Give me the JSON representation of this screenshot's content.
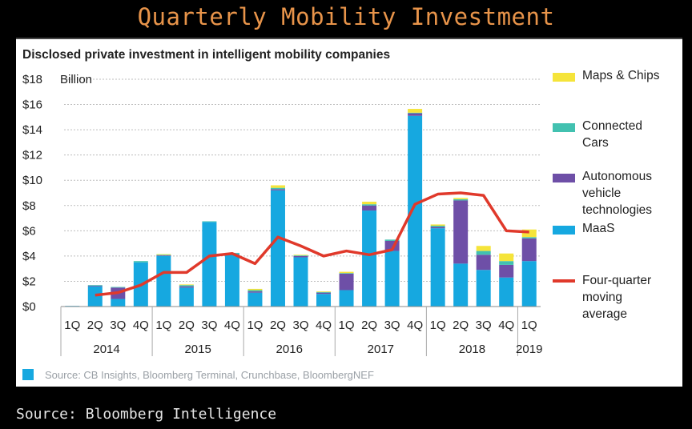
{
  "header": {
    "title": "Quarterly Mobility Investment"
  },
  "footer": {
    "source": "Source: Bloomberg Intelligence"
  },
  "chart_data": {
    "type": "bar",
    "stacked": true,
    "title": "Disclosed private investment in intelligent mobility companies",
    "unit_label": "Billion",
    "ylim": [
      0,
      18
    ],
    "y_ticks": [
      "$0",
      "$2",
      "$4",
      "$6",
      "$8",
      "$10",
      "$12",
      "$14",
      "$16",
      "$18"
    ],
    "grid": true,
    "legend_position": "right",
    "categories": [
      "1Q",
      "2Q",
      "3Q",
      "4Q",
      "1Q",
      "2Q",
      "3Q",
      "4Q",
      "1Q",
      "2Q",
      "3Q",
      "4Q",
      "1Q",
      "2Q",
      "3Q",
      "4Q",
      "1Q",
      "2Q",
      "3Q",
      "4Q",
      "1Q"
    ],
    "years": [
      {
        "label": "2014",
        "count": 4
      },
      {
        "label": "2015",
        "count": 4
      },
      {
        "label": "2016",
        "count": 4
      },
      {
        "label": "2017",
        "count": 4
      },
      {
        "label": "2018",
        "count": 4
      },
      {
        "label": "2019",
        "count": 1
      }
    ],
    "series": [
      {
        "name": "MaaS",
        "color": "#16a8e0",
        "values": [
          0.05,
          1.6,
          0.6,
          3.5,
          4.0,
          1.5,
          6.7,
          4.2,
          1.1,
          9.2,
          3.9,
          1.0,
          1.3,
          7.6,
          4.4,
          15.1,
          6.2,
          3.4,
          2.9,
          2.3,
          3.6
        ]
      },
      {
        "name": "Autonomous vehicle technologies",
        "color": "#6e4fa7",
        "values": [
          0,
          0.05,
          0.9,
          0,
          0.05,
          0.1,
          0,
          0,
          0.1,
          0.1,
          0.1,
          0.1,
          1.3,
          0.4,
          0.8,
          0.2,
          0.1,
          5.0,
          1.2,
          1.0,
          1.8
        ]
      },
      {
        "name": "Connected Cars",
        "color": "#42c1b0",
        "values": [
          0,
          0.05,
          0.05,
          0.1,
          0.05,
          0.1,
          0.05,
          0.05,
          0.1,
          0.1,
          0.05,
          0.05,
          0.05,
          0.1,
          0.1,
          0.05,
          0.1,
          0.1,
          0.3,
          0.3,
          0.1
        ]
      },
      {
        "name": "Maps & Chips",
        "color": "#f5e43a",
        "values": [
          0,
          0,
          0,
          0,
          0.05,
          0.05,
          0,
          0,
          0.1,
          0.2,
          0.05,
          0.05,
          0.1,
          0.2,
          0,
          0.3,
          0.1,
          0.1,
          0.4,
          0.6,
          0.6
        ]
      }
    ],
    "moving_average": {
      "name": "Four-quarter moving average",
      "color": "#e0392b",
      "start_index": 1,
      "values": [
        0.9,
        1.1,
        1.7,
        2.7,
        2.7,
        4.0,
        4.2,
        3.4,
        5.5,
        4.8,
        4.0,
        4.4,
        4.1,
        4.5,
        8.1,
        8.9,
        9.0,
        8.8,
        6.0,
        5.9
      ]
    },
    "legend": [
      {
        "label": "Maps & Chips",
        "color": "#f5e43a",
        "kind": "box"
      },
      {
        "label": "Connected Cars",
        "color": "#42c1b0",
        "kind": "box"
      },
      {
        "label": "Autonomous vehicle technologies",
        "color": "#6e4fa7",
        "kind": "box"
      },
      {
        "label": "MaaS",
        "color": "#16a8e0",
        "kind": "box"
      },
      {
        "label": "Four-quarter moving average",
        "color": "#e0392b",
        "kind": "line"
      }
    ],
    "source_note": "Source: CB Insights, Bloomberg Terminal, Crunchbase, BloombergNEF"
  }
}
